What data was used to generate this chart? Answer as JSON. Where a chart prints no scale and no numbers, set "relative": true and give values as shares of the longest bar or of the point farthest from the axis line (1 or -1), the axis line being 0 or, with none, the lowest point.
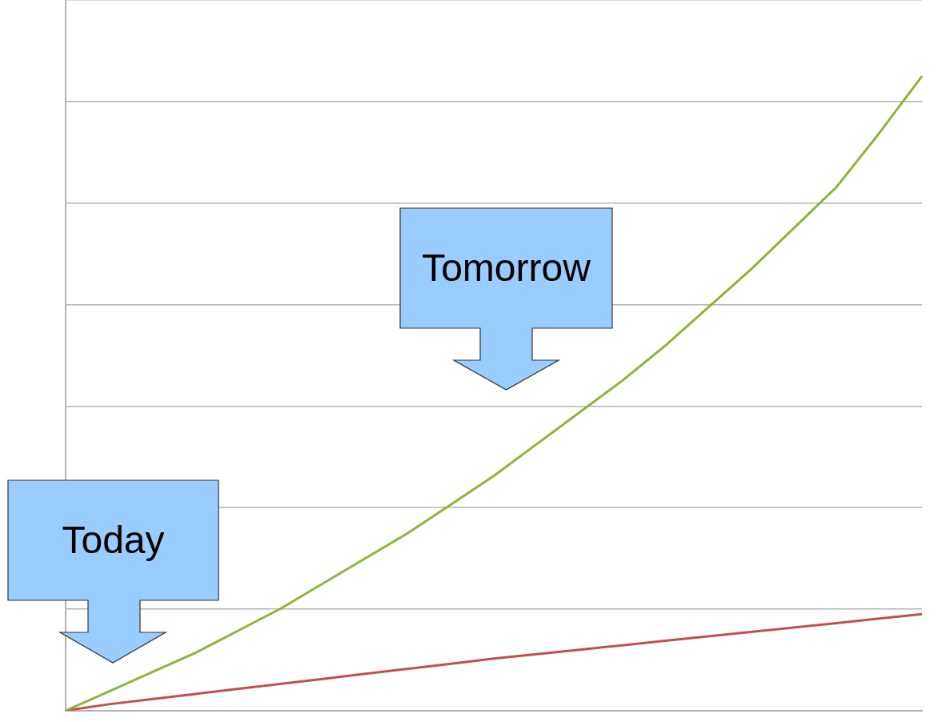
{
  "chart_data": {
    "type": "line",
    "relative": true,
    "categories": [
      null,
      null,
      null,
      null,
      null,
      null,
      null,
      null,
      null,
      null,
      null,
      null,
      null,
      null,
      null,
      null,
      null,
      null,
      null,
      null,
      null
    ],
    "series": [
      {
        "color": "#8db43e",
        "values": [
          0,
          0.03,
          0.06,
          0.09,
          0.125,
          0.16,
          0.2,
          0.24,
          0.28,
          0.325,
          0.37,
          0.42,
          0.47,
          0.52,
          0.575,
          0.635,
          0.695,
          0.76,
          0.825,
          0.91,
          1
        ]
      },
      {
        "color": "#c0504d",
        "values": [
          0,
          0.01,
          0.018,
          0.026,
          0.034,
          0.042,
          0.05,
          0.058,
          0.066,
          0.074,
          0.082,
          0.089,
          0.096,
          0.103,
          0.11,
          0.117,
          0.124,
          0.131,
          0.138,
          0.145,
          0.152
        ]
      }
    ],
    "grid": "y",
    "marker": "none",
    "line_style": "solid",
    "annotations": [
      "Today",
      "Tomorrow"
    ]
  }
}
